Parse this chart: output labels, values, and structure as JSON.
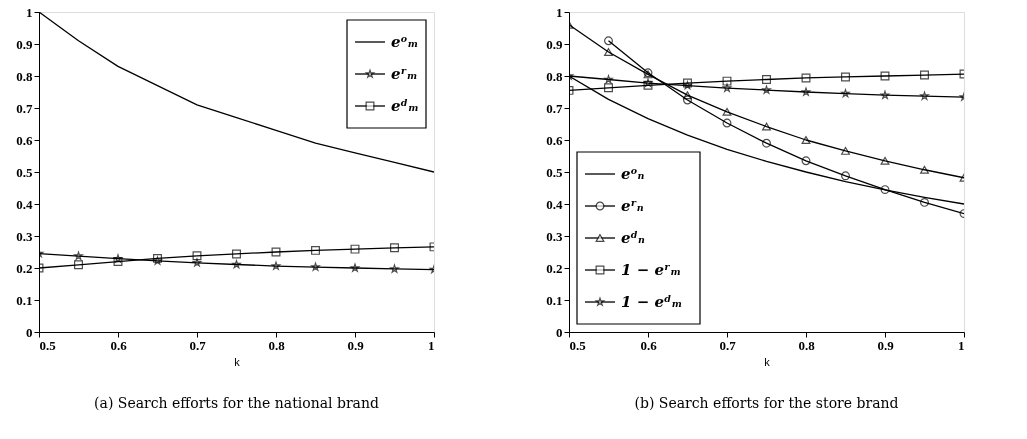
{
  "chart_data": [
    {
      "type": "line",
      "title": "(a) Search efforts for the national brand",
      "xlabel": "k",
      "x": [
        0.5,
        0.55,
        0.6,
        0.65,
        0.7,
        0.75,
        0.8,
        0.85,
        0.9,
        0.95,
        1
      ],
      "xlim": [
        0.5,
        1
      ],
      "xticks": [
        0.5,
        0.6,
        0.7,
        0.8,
        0.9,
        1
      ],
      "ylim": [
        0,
        1
      ],
      "yticks": [
        0,
        0.1,
        0.2,
        0.3,
        0.4,
        0.5,
        0.6,
        0.7,
        0.8,
        0.9,
        1
      ],
      "grid": false,
      "legend": "top right",
      "line_style": "solid",
      "series": [
        {
          "name": "eᵒₘ",
          "color": "#000000",
          "marker": "none",
          "values": [
            1,
            0.91,
            0.83,
            0.77,
            0.71,
            0.67,
            0.63,
            0.59,
            0.56,
            0.53,
            0.5
          ]
        },
        {
          "name": "eʳₘ",
          "color": "#000000",
          "marker": "star",
          "values": [
            0.245,
            0.237,
            0.229,
            0.222,
            0.216,
            0.211,
            0.206,
            0.203,
            0.2,
            0.197,
            0.195
          ]
        },
        {
          "name": "eᵈₘ",
          "color": "#000000",
          "marker": "square",
          "values": [
            0.2,
            0.21,
            0.22,
            0.23,
            0.238,
            0.244,
            0.25,
            0.255,
            0.259,
            0.263,
            0.266
          ]
        }
      ]
    },
    {
      "type": "line",
      "title": "(b) Search efforts for the store brand",
      "xlabel": "k",
      "x": [
        0.5,
        0.55,
        0.6,
        0.65,
        0.7,
        0.75,
        0.8,
        0.85,
        0.9,
        0.95,
        1
      ],
      "xlim": [
        0.5,
        1
      ],
      "xticks": [
        0.5,
        0.6,
        0.7,
        0.8,
        0.9,
        1
      ],
      "ylim": [
        0,
        1
      ],
      "yticks": [
        0,
        0.1,
        0.2,
        0.3,
        0.4,
        0.5,
        0.6,
        0.7,
        0.8,
        0.9,
        1
      ],
      "grid": false,
      "legend": "bottom left",
      "line_style": "solid",
      "series": [
        {
          "name": "eᵒₙ",
          "color": "#000000",
          "marker": "none",
          "values": [
            0.8,
            0.727,
            0.667,
            0.615,
            0.571,
            0.533,
            0.5,
            0.47,
            0.444,
            0.421,
            0.4
          ]
        },
        {
          "name": "eʳₙ",
          "color": "#000000",
          "marker": "circle",
          "values": [
            null,
            0.91,
            0.81,
            0.725,
            0.653,
            0.59,
            0.535,
            0.488,
            0.445,
            0.405,
            0.37
          ]
        },
        {
          "name": "eᵈₙ",
          "color": "#000000",
          "marker": "triangle",
          "values": [
            0.96,
            0.875,
            0.805,
            0.74,
            0.688,
            0.642,
            0.6,
            0.566,
            0.535,
            0.507,
            0.482
          ]
        },
        {
          "name": "1 − eʳₘ",
          "color": "#000000",
          "marker": "square",
          "values": [
            0.755,
            0.763,
            0.771,
            0.778,
            0.784,
            0.789,
            0.794,
            0.797,
            0.8,
            0.803,
            0.806
          ]
        },
        {
          "name": "1 − eᵈₘ",
          "color": "#000000",
          "marker": "star",
          "values": [
            0.8,
            0.789,
            0.778,
            0.77,
            0.762,
            0.756,
            0.75,
            0.745,
            0.74,
            0.737,
            0.734
          ]
        }
      ]
    }
  ]
}
